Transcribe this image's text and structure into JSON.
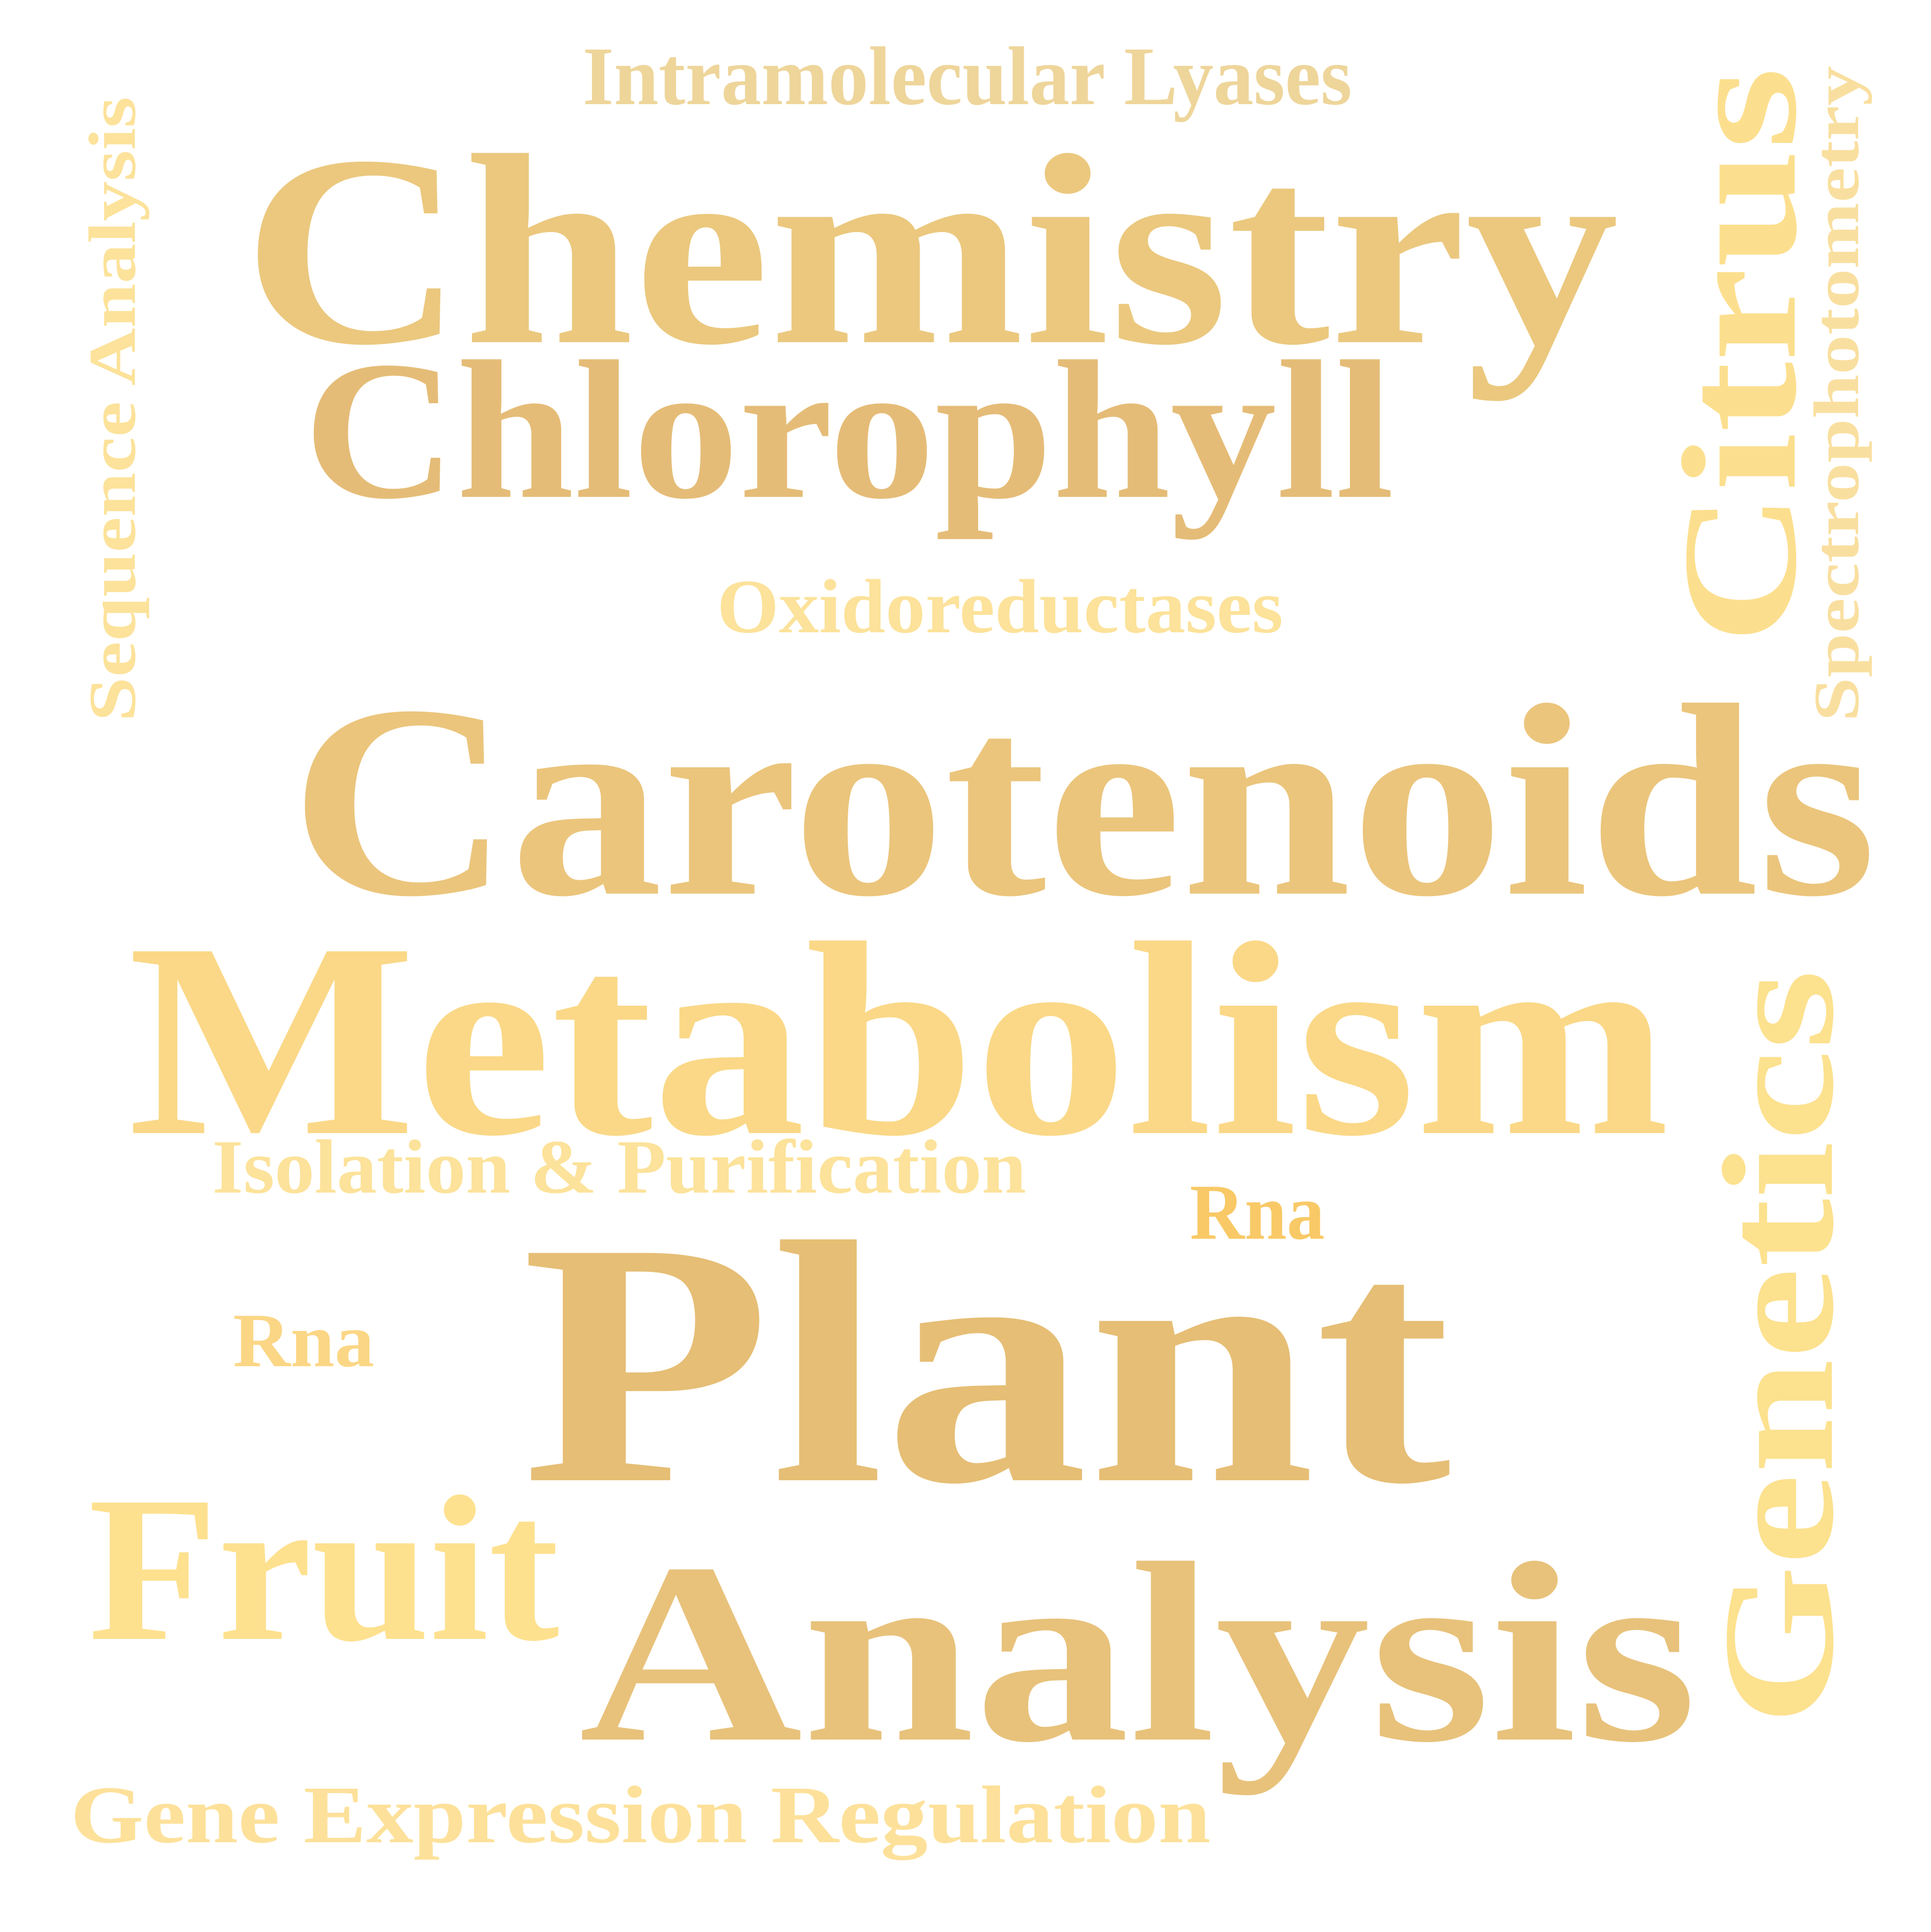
{
  "words": [
    {
      "id": "intramolecular-lyases",
      "text": "Intramolecular Lyases",
      "color": "#EED59A"
    },
    {
      "id": "chemistry",
      "text": "Chemistry",
      "color": "#EBC87E"
    },
    {
      "id": "chlorophyll",
      "text": "Chlorophyll",
      "color": "#E5BC77"
    },
    {
      "id": "oxidoreductases",
      "text": "Oxidoreductases",
      "color": "#FCE29A"
    },
    {
      "id": "carotenoids",
      "text": "Carotenoids",
      "color": "#EBC57C"
    },
    {
      "id": "metabolism",
      "text": "Metabolism",
      "color": "#FAD887"
    },
    {
      "id": "isolation-purification",
      "text": "Isolation & Purification",
      "color": "#FCE29A"
    },
    {
      "id": "rna-right",
      "text": "Rna",
      "color": "#F8C966"
    },
    {
      "id": "plant",
      "text": "Plant",
      "color": "#E6BE75"
    },
    {
      "id": "rna-left",
      "text": "Rna",
      "color": "#FBD685"
    },
    {
      "id": "fruit",
      "text": "Fruit",
      "color": "#FEE18F"
    },
    {
      "id": "analysis",
      "text": "Analysis",
      "color": "#E8C27B"
    },
    {
      "id": "gene-expression-regulation",
      "text": "Gene Expression Regulation",
      "color": "#FDE19A"
    },
    {
      "id": "sequence-analysis",
      "text": "Sequence Analysis",
      "color": "#FCE29A"
    },
    {
      "id": "citrus",
      "text": "Citrus",
      "color": "#FCDF8E"
    },
    {
      "id": "spectrophotometry",
      "text": "Spectrophotometry",
      "color": "#F9DF9F"
    },
    {
      "id": "genetics",
      "text": "Genetics",
      "color": "#FCE18E"
    }
  ]
}
